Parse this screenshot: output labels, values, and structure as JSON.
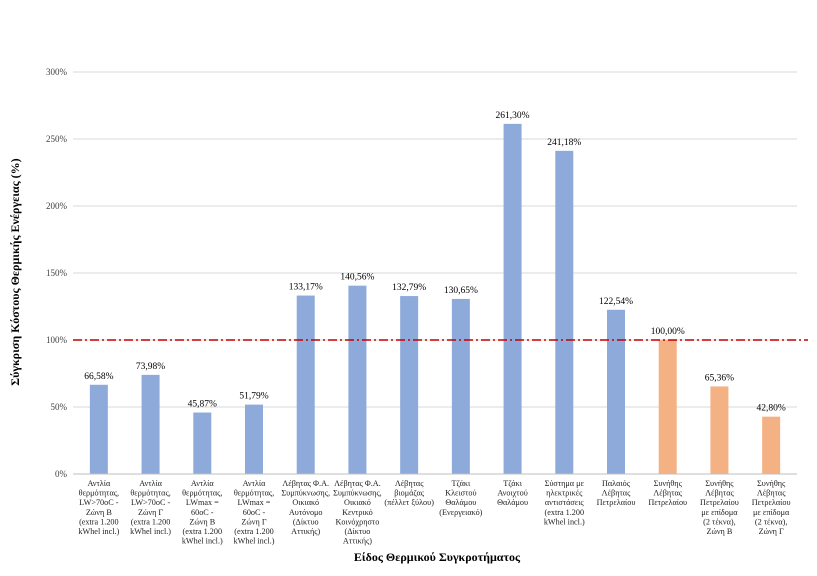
{
  "chart_data": {
    "type": "bar",
    "xlabel": "Είδος Θερμικού Συγκροτήματος",
    "ylabel": "Σύγκριση Κόστους Θερμικής Ενέργειας (%)",
    "ylim": [
      0,
      300
    ],
    "yticks": [
      "0%",
      "50%",
      "100%",
      "150%",
      "200%",
      "250%",
      "300%"
    ],
    "grid": true,
    "reference_line": {
      "value": 100,
      "color": "#c00000",
      "style": "dash-dot"
    },
    "categories": [
      [
        "Αντλία",
        "θερμότητας,",
        "LW>70oC -",
        "Ζώνη Β",
        "(extra 1.200",
        "kWhel incl.)"
      ],
      [
        "Αντλία",
        "θερμότητας,",
        "LW>70oC -",
        "Ζώνη Γ",
        "(extra 1.200",
        "kWhel incl.)"
      ],
      [
        "Αντλία",
        "θερμότητας,",
        "LWmax =",
        "60oC -",
        "Ζώνη Β",
        "(extra 1.200",
        "kWhel incl.)"
      ],
      [
        "Αντλία",
        "θερμότητας,",
        "LWmax =",
        "60oC -",
        "Ζώνη Γ",
        "(extra 1.200",
        "kWhel incl.)"
      ],
      [
        "Λέβητας Φ.Α.",
        "Συμπύκνωσης,",
        "Οικιακό",
        "Αυτόνομο",
        "(Δίκτυο",
        "Αττικής)"
      ],
      [
        "Λέβητας Φ.Α.",
        "Συμπύκνωσης,",
        "Οικιακό",
        "Κεντρικό",
        "Κοινόχρηστο",
        "(Δίκτυο",
        "Αττικής)"
      ],
      [
        "Λέβητας",
        "βιομάζας",
        "(πέλλετ ξύλου)"
      ],
      [
        "Τζάκι",
        "Κλειστού",
        "Θαλάμου",
        "(Ενεργειακό)"
      ],
      [
        "Τζάκι",
        "Ανοιχτού",
        "Θαλάμου"
      ],
      [
        "Σύστημα με",
        "ηλεκτρικές",
        "αντιστάσεις",
        "(extra 1.200",
        "kWhel incl.)"
      ],
      [
        "Παλαιός",
        "Λέβητας",
        "Πετρελαίου"
      ],
      [
        "Συνήθης",
        "Λέβητας",
        "Πετρελαίου"
      ],
      [
        "Συνήθης",
        "Λέβητας",
        "Πετρελαίου",
        "με επίδομα",
        "(2 τέκνα),",
        "Ζώνη Β"
      ],
      [
        "Συνήθης",
        "Λέβητας",
        "Πετρελαίου",
        "με επίδομα",
        "(2 τέκνα),",
        "Ζώνη Γ"
      ]
    ],
    "values": [
      66.58,
      73.98,
      45.87,
      51.79,
      133.17,
      140.56,
      132.79,
      130.65,
      261.3,
      241.18,
      122.54,
      100.0,
      65.36,
      42.8
    ],
    "data_labels": [
      "66,58%",
      "73,98%",
      "45,87%",
      "51,79%",
      "133,17%",
      "140,56%",
      "132,79%",
      "130,65%",
      "261,30%",
      "241,18%",
      "122,54%",
      "100,00%",
      "65,36%",
      "42,80%"
    ],
    "colors": [
      "#8eaadb",
      "#8eaadb",
      "#8eaadb",
      "#8eaadb",
      "#8eaadb",
      "#8eaadb",
      "#8eaadb",
      "#8eaadb",
      "#8eaadb",
      "#8eaadb",
      "#8eaadb",
      "#f4b183",
      "#f4b183",
      "#f4b183"
    ]
  }
}
